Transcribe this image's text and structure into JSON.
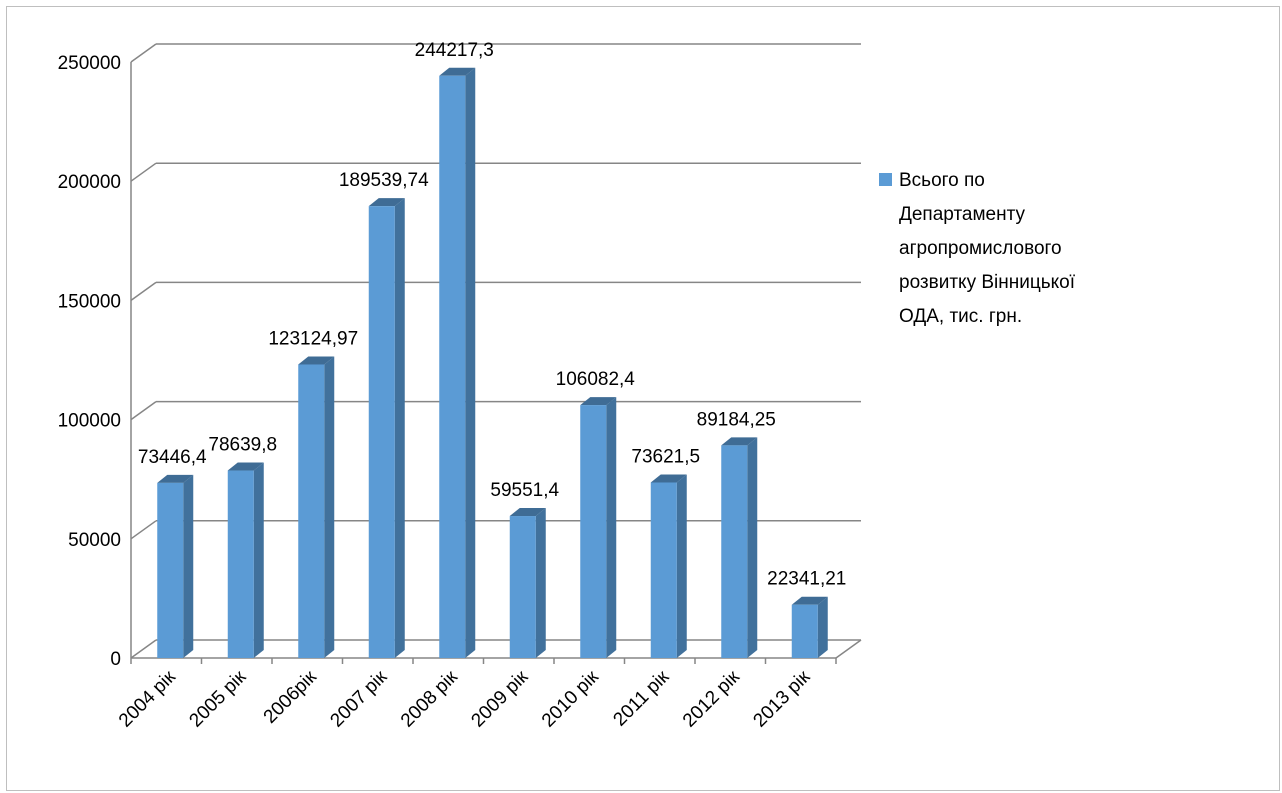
{
  "chart_data": {
    "type": "bar",
    "style": "3d-column",
    "title": "",
    "xlabel": "",
    "ylabel": "",
    "categories": [
      "2004 рік",
      "2005 рік",
      "2006рік",
      "2007 рік",
      "2008 рік",
      "2009 рік",
      "2010 рік",
      "2011 рік",
      "2012 рік",
      "2013 рік"
    ],
    "series": [
      {
        "name": "Всього по Департаменту агропромислового розвитку Вінницької ОДА, тис. грн.",
        "name_lines": [
          "Всього по",
          "Департаменту",
          "агропромислового",
          "розвитку Вінницької",
          "ОДА, тис. грн."
        ],
        "values": [
          73446.4,
          78639.8,
          123124.97,
          189539.74,
          244217.3,
          59551.4,
          106082.4,
          73621.5,
          89184.25,
          22341.21
        ],
        "data_labels": [
          "73446,4",
          "78639,8",
          "123124,97",
          "189539,74",
          "244217,3",
          "59551,4",
          "106082,4",
          "73621,5",
          "89184,25",
          "22341,21"
        ],
        "color": "#5B9BD5"
      }
    ],
    "ylim": [
      0,
      250000
    ],
    "yticks": [
      0,
      50000,
      100000,
      150000,
      200000,
      250000
    ],
    "ytick_labels": [
      "0",
      "50000",
      "100000",
      "150000",
      "200000",
      "250000"
    ],
    "grid": true,
    "legend_position": "right"
  }
}
